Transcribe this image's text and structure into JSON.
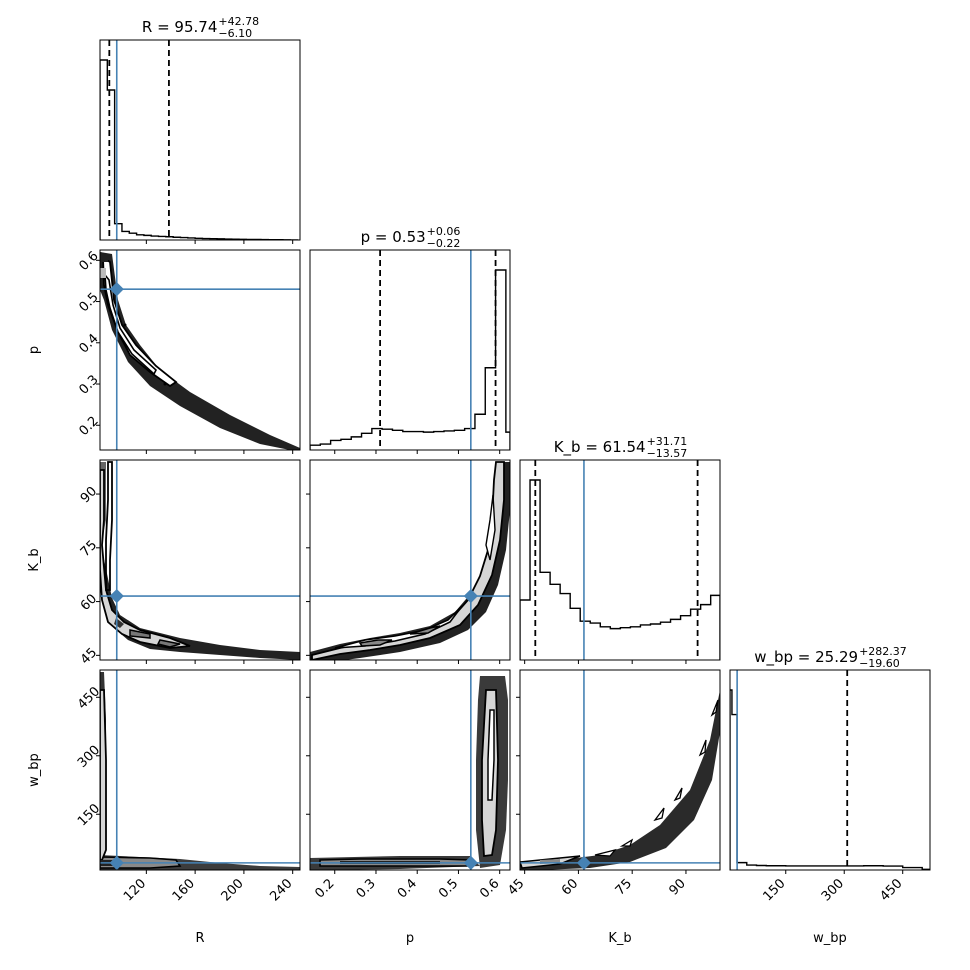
{
  "chart_data": {
    "type": "corner",
    "parameters": [
      "R",
      "p",
      "K_b",
      "w_bp"
    ],
    "axis_labels": {
      "R": "R",
      "p": "p",
      "K_b": "K_b",
      "w_bp": "w_bp"
    },
    "ranges": {
      "R": [
        82,
        246
      ],
      "p": [
        0.14,
        0.625
      ],
      "K_b": [
        43.7,
        99.5
      ],
      "w_bp": [
        7,
        520
      ]
    },
    "ticks": {
      "R": [
        120,
        160,
        200,
        240
      ],
      "p": [
        0.2,
        0.3,
        0.4,
        0.5,
        0.6
      ],
      "K_b": [
        45,
        60,
        75,
        90
      ],
      "w_bp": [
        150,
        300,
        450
      ]
    },
    "tick_labels": {
      "R": [
        "120",
        "160",
        "200",
        "240"
      ],
      "p": [
        "0.2",
        "0.3",
        "0.4",
        "0.5",
        "0.6"
      ],
      "K_b": [
        "45",
        "60",
        "75",
        "90"
      ],
      "w_bp": [
        "150",
        "300",
        "450"
      ]
    },
    "titles": [
      {
        "param": "R",
        "main": "R = 95.74",
        "sup": "+42.78",
        "sub": "−6.10"
      },
      {
        "param": "p",
        "main": "p = 0.53",
        "sup": "+0.06",
        "sub": "−0.22"
      },
      {
        "param": "K_b",
        "main": "K_b = 61.54",
        "sup": "+31.71",
        "sub": "−13.57"
      },
      {
        "param": "w_bp",
        "main": "w_bp = 25.29",
        "sup": "+282.37",
        "sub": "−19.60"
      }
    ],
    "truths": {
      "R": 95.74,
      "p": 0.53,
      "K_b": 61.54,
      "w_bp": 25.29
    },
    "quantiles": {
      "R": [
        89.64,
        138.52
      ],
      "p": [
        0.31,
        0.59
      ],
      "K_b": [
        47.97,
        93.25
      ],
      "w_bp": [
        5.69,
        307.66
      ]
    },
    "histograms": {
      "R": {
        "edges": [
          82,
          88,
          94,
          100,
          106,
          112,
          118,
          124,
          130,
          136,
          142,
          148,
          154,
          160,
          166,
          172,
          178,
          184,
          190,
          196,
          202,
          208,
          214,
          220,
          226,
          232,
          238,
          244
        ],
        "counts": [
          2100,
          1750,
          190,
          100,
          80,
          60,
          54,
          46,
          42,
          38,
          32,
          28,
          24,
          20,
          17,
          15,
          13,
          11,
          9,
          8,
          7,
          6,
          5,
          4,
          3,
          2,
          1
        ]
      },
      "p": {
        "edges": [
          0.14,
          0.165,
          0.19,
          0.215,
          0.24,
          0.265,
          0.29,
          0.315,
          0.34,
          0.365,
          0.39,
          0.415,
          0.44,
          0.465,
          0.49,
          0.515,
          0.54,
          0.565,
          0.59,
          0.615,
          0.625
        ],
        "counts": [
          8,
          10,
          16,
          18,
          22,
          28,
          36,
          35,
          33,
          31,
          31,
          30,
          31,
          32,
          33,
          36,
          60,
          138,
          302,
          30
        ]
      },
      "K_b": {
        "edges": [
          43.7,
          46.5,
          49.3,
          52.1,
          54.9,
          57.7,
          60.5,
          63.3,
          66.1,
          68.9,
          71.7,
          74.5,
          77.3,
          80.1,
          82.9,
          85.7,
          88.5,
          91.3,
          94.1,
          96.9,
          99.5
        ],
        "counts": [
          65,
          195,
          95,
          82,
          72,
          56,
          42,
          40,
          36,
          34,
          35,
          36,
          38,
          39,
          41,
          44,
          48,
          55,
          60,
          70
        ]
      },
      "w_bp": {
        "edges": [
          7,
          12,
          25,
          50,
          75,
          100,
          150,
          200,
          250,
          300,
          350,
          400,
          450,
          500,
          520
        ],
        "counts": [
          2200,
          1900,
          90,
          60,
          55,
          52,
          50,
          50,
          50,
          50,
          52,
          48,
          30,
          8
        ]
      }
    },
    "colors": {
      "truth": "#4682b4",
      "contour": "#000000",
      "fill_light": "#d6d6d6",
      "fill_mid": "#8a8a8a",
      "fill_dark": "#3c3c3c"
    },
    "grid": false,
    "legend": "none"
  }
}
